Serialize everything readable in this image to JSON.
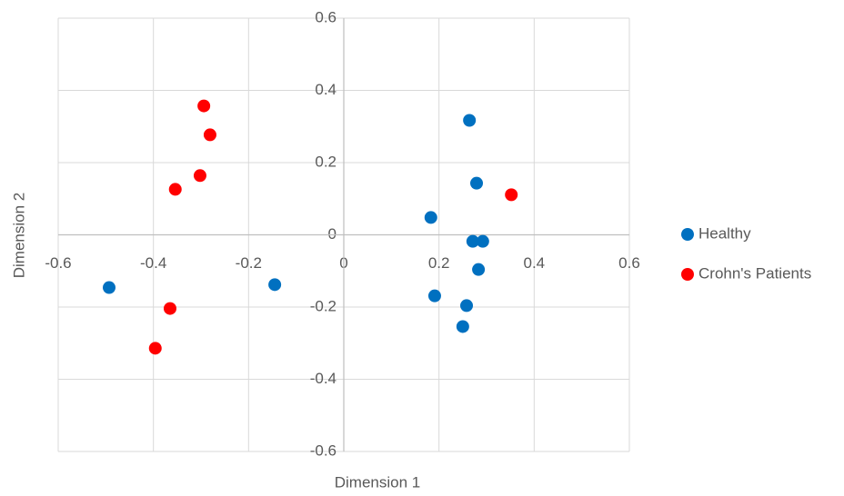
{
  "chart_data": {
    "type": "scatter",
    "x_label": "Dimension 1",
    "y_label": "Dimension 2",
    "xlim": [
      -0.6,
      0.6
    ],
    "ylim": [
      -0.6,
      0.6
    ],
    "xticks": [
      -0.6,
      -0.4,
      -0.2,
      0,
      0.2,
      0.4,
      0.6
    ],
    "yticks": [
      -0.6,
      -0.4,
      -0.2,
      0,
      0.2,
      0.4,
      0.6
    ],
    "grid": true,
    "legend": "right",
    "series": [
      {
        "name": "Healthy",
        "color": "#0070c0",
        "x": [
          -0.493,
          -0.145,
          0.264,
          0.279,
          0.183,
          0.271,
          0.292,
          0.283,
          0.191,
          0.258,
          0.25
        ],
        "values": [
          -0.146,
          -0.138,
          0.317,
          0.143,
          0.048,
          -0.018,
          -0.018,
          -0.096,
          -0.169,
          -0.196,
          -0.254
        ]
      },
      {
        "name": "Crohn's Patients",
        "color": "#ff0000",
        "x": [
          -0.294,
          -0.281,
          -0.302,
          -0.354,
          0.352,
          -0.365,
          -0.396
        ],
        "values": [
          0.357,
          0.277,
          0.164,
          0.126,
          0.111,
          -0.204,
          -0.314
        ]
      }
    ]
  }
}
